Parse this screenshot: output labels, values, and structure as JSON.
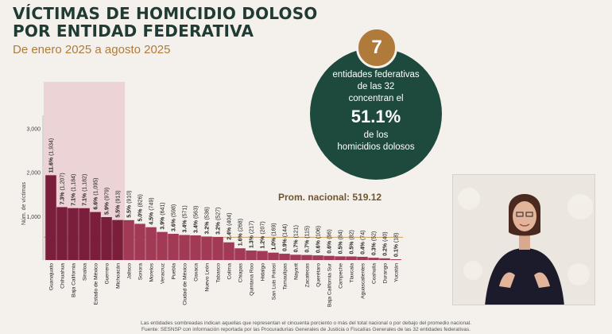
{
  "header": {
    "title_line1": "VÍCTIMAS DE HOMICIDIO DOLOSO",
    "title_line2": "POR ENTIDAD FEDERATIVA",
    "subtitle": "De enero 2025 a agosto 2025"
  },
  "callout": {
    "number": "7",
    "line1": "entidades federativas",
    "line2": "de las 32",
    "line3": "concentran el",
    "big": "51.1%",
    "line4": "de los",
    "line5": "homicidios dolosos"
  },
  "footer": {
    "line1": "Las entidades sombreadas indican aquellas que representan el cincuenta porciento o más del total nacional o por debajo del promedio nacional.",
    "line2": "Fuente: SESNSP con información reportada por las Procuradurías Generales de Justicia o Fiscalías Generales de las 32 entidades federativas."
  },
  "colors": {
    "dark_bar": "#7a1e3c",
    "light_bar": "#a23a55",
    "highlight": "#ecd3d6",
    "avg_line": "#c9a063",
    "avg_text": "#6e5633",
    "circle": "#1e4a3e",
    "accent": "#b07a3a"
  },
  "chart_data": {
    "type": "bar",
    "xlabel": "",
    "ylabel": "Núm. de víctimas",
    "ylim": [
      0,
      3300
    ],
    "yticks": [
      1000,
      2000,
      3000
    ],
    "ytick_labels": [
      "1,000",
      "2,000",
      "3,000"
    ],
    "average": 519.12,
    "average_label": "Prom. nacional: 519.12",
    "highlighted_count": 7,
    "categories": [
      "Guanajuato",
      "Chihuahua",
      "Baja California",
      "Sinaloa",
      "Estado de México",
      "Guerrero",
      "Michoacán",
      "Jalisco",
      "Sonora",
      "Morelos",
      "Veracruz",
      "Puebla",
      "Ciudad de México",
      "Oaxaca",
      "Nuevo León",
      "Tabasco",
      "Colima",
      "Chiapas",
      "Quintana Roo",
      "Hidalgo",
      "San Luis Potosí",
      "Tamaulipas",
      "Nayarit",
      "Zacatecas",
      "Querétaro",
      "Baja California Sur",
      "Campeche",
      "Tlaxcala",
      "Aguascalientes",
      "Coahuila",
      "Durango",
      "Yucatán"
    ],
    "values": [
      1934,
      1207,
      1184,
      1182,
      1095,
      979,
      913,
      910,
      826,
      749,
      641,
      598,
      571,
      563,
      536,
      527,
      404,
      268,
      217,
      207,
      169,
      144,
      121,
      115,
      106,
      96,
      84,
      82,
      74,
      52,
      40,
      18
    ],
    "percent_labels": [
      "11.6%",
      "7.3%",
      "7.1%",
      "7.1%",
      "6.6%",
      "5.9%",
      "5.5%",
      "5.5%",
      "5.0%",
      "4.5%",
      "3.9%",
      "3.6%",
      "3.4%",
      "3.4%",
      "3.2%",
      "3.2%",
      "2.4%",
      "1.6%",
      "1.3%",
      "1.2%",
      "1.0%",
      "0.9%",
      "0.7%",
      "0.7%",
      "0.6%",
      "0.6%",
      "0.5%",
      "0.5%",
      "0.4%",
      "0.3%",
      "0.2%",
      "0.1%"
    ],
    "count_labels": [
      "(1,934)",
      "(1,207)",
      "(1,184)",
      "(1,182)",
      "(1,095)",
      "(979)",
      "(913)",
      "(910)",
      "(826)",
      "(749)",
      "(641)",
      "(598)",
      "(571)",
      "(563)",
      "(536)",
      "(527)",
      "(404)",
      "(268)",
      "(217)",
      "(207)",
      "(169)",
      "(144)",
      "(121)",
      "(115)",
      "(106)",
      "(96)",
      "(84)",
      "(82)",
      "(74)",
      "(52)",
      "(40)",
      "(18)"
    ]
  }
}
